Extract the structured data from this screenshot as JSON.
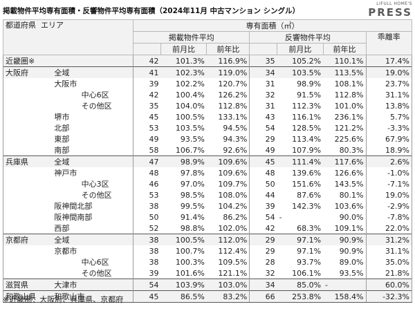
{
  "title": "掲載物件平均専有面積・反響物件平均専有面積（2024年11月 中古マンション シングル）",
  "logo": {
    "small": "LIFULL HOME'S",
    "big": "PRESS"
  },
  "headers": {
    "pref": "都道府県",
    "area": "エリア",
    "main": "専有面積（㎡）",
    "listing": "掲載物件平均",
    "response": "反響物件平均",
    "mom": "前月比",
    "yoy": "前年比",
    "gap": "乖離率"
  },
  "rows": [
    {
      "c1": "近畿圏※",
      "c2": "",
      "c3": "",
      "l": "42",
      "lm": "101.3%",
      "ly": "116.9%",
      "r": "35",
      "rm": "105.2%",
      "ry": "110.1%",
      "g": "17.4%",
      "gray": true,
      "top": true
    },
    {
      "c1": "大阪府",
      "c2": "全域",
      "c3": "",
      "l": "41",
      "lm": "102.3%",
      "ly": "119.0%",
      "r": "34",
      "rm": "103.5%",
      "ry": "113.5%",
      "g": "19.0%",
      "gray": true,
      "top": true
    },
    {
      "c1": "",
      "c2": "大阪市",
      "c3": "",
      "l": "39",
      "lm": "102.2%",
      "ly": "120.7%",
      "r": "31",
      "rm": "98.9%",
      "ry": "108.1%",
      "g": "23.7%"
    },
    {
      "c1": "",
      "c2": "",
      "c3": "中心6区",
      "l": "42",
      "lm": "100.4%",
      "ly": "126.2%",
      "r": "32",
      "rm": "91.5%",
      "ry": "112.8%",
      "g": "31.1%"
    },
    {
      "c1": "",
      "c2": "",
      "c3": "その他区",
      "l": "35",
      "lm": "104.0%",
      "ly": "112.8%",
      "r": "31",
      "rm": "112.3%",
      "ry": "101.0%",
      "g": "13.8%"
    },
    {
      "c1": "",
      "c2": "堺市",
      "c3": "",
      "l": "45",
      "lm": "100.5%",
      "ly": "133.1%",
      "r": "43",
      "rm": "116.1%",
      "ry": "236.1%",
      "g": "5.7%"
    },
    {
      "c1": "",
      "c2": "北部",
      "c3": "",
      "l": "53",
      "lm": "103.5%",
      "ly": "94.5%",
      "r": "54",
      "rm": "128.5%",
      "ry": "121.2%",
      "g": "-3.3%"
    },
    {
      "c1": "",
      "c2": "東部",
      "c3": "",
      "l": "49",
      "lm": "93.5%",
      "ly": "94.3%",
      "r": "29",
      "rm": "113.4%",
      "ry": "225.6%",
      "g": "67.9%"
    },
    {
      "c1": "",
      "c2": "南部",
      "c3": "",
      "l": "58",
      "lm": "106.7%",
      "ly": "92.6%",
      "r": "49",
      "rm": "107.9%",
      "ry": "80.3%",
      "g": "18.9%"
    },
    {
      "c1": "兵庫県",
      "c2": "全域",
      "c3": "",
      "l": "47",
      "lm": "98.9%",
      "ly": "109.6%",
      "r": "45",
      "rm": "111.4%",
      "ry": "117.6%",
      "g": "2.6%",
      "gray": true,
      "top": true
    },
    {
      "c1": "",
      "c2": "神戸市",
      "c3": "",
      "l": "48",
      "lm": "97.8%",
      "ly": "109.6%",
      "r": "48",
      "rm": "139.6%",
      "ry": "126.6%",
      "g": "-1.0%"
    },
    {
      "c1": "",
      "c2": "",
      "c3": "中心3区",
      "l": "46",
      "lm": "97.0%",
      "ly": "109.7%",
      "r": "50",
      "rm": "151.6%",
      "ry": "143.5%",
      "g": "-7.1%"
    },
    {
      "c1": "",
      "c2": "",
      "c3": "その他区",
      "l": "53",
      "lm": "98.5%",
      "ly": "108.0%",
      "r": "44",
      "rm": "87.6%",
      "ry": "80.1%",
      "g": "19.0%"
    },
    {
      "c1": "",
      "c2": "阪神間北部",
      "c3": "",
      "l": "38",
      "lm": "99.5%",
      "ly": "104.2%",
      "r": "39",
      "rm": "142.3%",
      "ry": "103.6%",
      "g": "-2.9%"
    },
    {
      "c1": "",
      "c2": "阪神間南部",
      "c3": "",
      "l": "50",
      "lm": "91.4%",
      "ly": "86.2%",
      "r": "54",
      "rm": "-",
      "ry": "90.0%",
      "g": "-7.8%"
    },
    {
      "c1": "",
      "c2": "西部",
      "c3": "",
      "l": "52",
      "lm": "98.8%",
      "ly": "102.0%",
      "r": "42",
      "rm": "68.3%",
      "ry": "109.1%",
      "g": "22.0%"
    },
    {
      "c1": "京都府",
      "c2": "全域",
      "c3": "",
      "l": "38",
      "lm": "100.5%",
      "ly": "112.0%",
      "r": "29",
      "rm": "97.1%",
      "ry": "90.9%",
      "g": "31.2%",
      "gray": true,
      "top": true
    },
    {
      "c1": "",
      "c2": "京都市",
      "c3": "",
      "l": "38",
      "lm": "100.7%",
      "ly": "112.4%",
      "r": "29",
      "rm": "97.1%",
      "ry": "90.9%",
      "g": "31.1%"
    },
    {
      "c1": "",
      "c2": "",
      "c3": "中心6区",
      "l": "38",
      "lm": "100.3%",
      "ly": "109.5%",
      "r": "28",
      "rm": "93.7%",
      "ry": "89.0%",
      "g": "35.0%"
    },
    {
      "c1": "",
      "c2": "",
      "c3": "その他区",
      "l": "39",
      "lm": "101.6%",
      "ly": "121.1%",
      "r": "32",
      "rm": "106.1%",
      "ry": "93.5%",
      "g": "21.8%"
    },
    {
      "c1": "滋賀県",
      "c2": "大津市",
      "c3": "",
      "l": "54",
      "lm": "103.9%",
      "ly": "103.0%",
      "r": "34",
      "rm": "85.0%",
      "ry": "-",
      "g": "60.0%",
      "gray": true,
      "top": true
    },
    {
      "c1": "和歌山県",
      "c2": "和歌山市",
      "c3": "",
      "l": "45",
      "lm": "86.5%",
      "ly": "83.2%",
      "r": "66",
      "rm": "253.8%",
      "ry": "158.4%",
      "g": "-32.3%",
      "gray": true,
      "top": true
    }
  ],
  "note": "※近畿圏：大阪府、兵庫県、京都府"
}
